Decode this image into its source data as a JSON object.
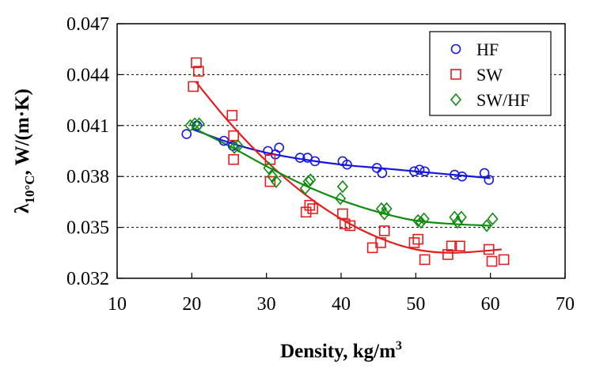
{
  "chart_data": {
    "type": "scatter",
    "xlabel": "Density, kg/m",
    "xlabel_sup": "3",
    "ylabel_main": "λ",
    "ylabel_sub": "10°C",
    "ylabel_rest": ",  W/(m·K)",
    "xlim": [
      10,
      70
    ],
    "ylim": [
      0.032,
      0.047
    ],
    "xticks": [
      "10",
      "20",
      "30",
      "40",
      "50",
      "60",
      "70"
    ],
    "yticks": [
      "0.032",
      "0.035",
      "0.038",
      "0.041",
      "0.044",
      "0.047"
    ],
    "grid": "horizontal dashed",
    "legend_position": "top-right",
    "series": [
      {
        "name": "HF",
        "marker": "circle",
        "color": "#1515e6",
        "points": [
          [
            19.3,
            0.0405
          ],
          [
            20.7,
            0.041
          ],
          [
            24.3,
            0.0401
          ],
          [
            25.5,
            0.0398
          ],
          [
            30.2,
            0.0395
          ],
          [
            31.2,
            0.0393
          ],
          [
            31.7,
            0.0397
          ],
          [
            34.5,
            0.0391
          ],
          [
            35.5,
            0.0391
          ],
          [
            36.5,
            0.0389
          ],
          [
            40.2,
            0.0389
          ],
          [
            40.8,
            0.0387
          ],
          [
            44.8,
            0.0385
          ],
          [
            45.5,
            0.0382
          ],
          [
            49.8,
            0.0383
          ],
          [
            50.5,
            0.0384
          ],
          [
            51.2,
            0.0383
          ],
          [
            55.2,
            0.0381
          ],
          [
            56.2,
            0.038
          ],
          [
            59.2,
            0.0382
          ],
          [
            59.8,
            0.0378
          ]
        ],
        "fit": [
          [
            20,
            0.0408
          ],
          [
            25,
            0.04
          ],
          [
            30,
            0.0394
          ],
          [
            35,
            0.039
          ],
          [
            40,
            0.0387
          ],
          [
            45,
            0.0385
          ],
          [
            50,
            0.0383
          ],
          [
            55,
            0.0381
          ],
          [
            60,
            0.0379
          ]
        ]
      },
      {
        "name": "SW",
        "marker": "square",
        "color": "#e41e1e",
        "points": [
          [
            20.2,
            0.0433
          ],
          [
            20.6,
            0.0447
          ],
          [
            20.9,
            0.0442
          ],
          [
            25.4,
            0.0416
          ],
          [
            25.6,
            0.0404
          ],
          [
            25.6,
            0.039
          ],
          [
            30.5,
            0.039
          ],
          [
            30.5,
            0.0377
          ],
          [
            35.3,
            0.0359
          ],
          [
            35.8,
            0.0363
          ],
          [
            36.2,
            0.0361
          ],
          [
            40.2,
            0.0358
          ],
          [
            40.5,
            0.0352
          ],
          [
            41.2,
            0.0351
          ],
          [
            44.2,
            0.0338
          ],
          [
            45.3,
            0.0341
          ],
          [
            45.8,
            0.0348
          ],
          [
            49.8,
            0.0341
          ],
          [
            50.3,
            0.0343
          ],
          [
            51.2,
            0.0331
          ],
          [
            54.3,
            0.0334
          ],
          [
            54.8,
            0.0339
          ],
          [
            55.9,
            0.0339
          ],
          [
            59.8,
            0.0337
          ],
          [
            60.2,
            0.033
          ],
          [
            61.8,
            0.0331
          ]
        ],
        "fit": [
          [
            20.5,
            0.0436
          ],
          [
            25,
            0.0412
          ],
          [
            30,
            0.0389
          ],
          [
            35,
            0.037
          ],
          [
            40,
            0.0355
          ],
          [
            45,
            0.0344
          ],
          [
            50,
            0.0337
          ],
          [
            55,
            0.0335
          ],
          [
            61.5,
            0.0337
          ]
        ]
      },
      {
        "name": "SW/HF",
        "marker": "diamond",
        "color": "#0e8c0e",
        "points": [
          [
            19.8,
            0.041
          ],
          [
            20.4,
            0.0411
          ],
          [
            21.0,
            0.0411
          ],
          [
            25.7,
            0.0397
          ],
          [
            26.2,
            0.0398
          ],
          [
            30.3,
            0.0385
          ],
          [
            30.8,
            0.038
          ],
          [
            31.3,
            0.0377
          ],
          [
            35.2,
            0.0373
          ],
          [
            35.6,
            0.0377
          ],
          [
            35.9,
            0.0378
          ],
          [
            39.9,
            0.0367
          ],
          [
            40.2,
            0.0374
          ],
          [
            45.4,
            0.0361
          ],
          [
            45.8,
            0.0358
          ],
          [
            46.1,
            0.0361
          ],
          [
            50.3,
            0.0354
          ],
          [
            50.7,
            0.0353
          ],
          [
            51.1,
            0.0355
          ],
          [
            55.2,
            0.0356
          ],
          [
            55.6,
            0.0353
          ],
          [
            56.1,
            0.0356
          ],
          [
            59.5,
            0.0351
          ],
          [
            60.3,
            0.0355
          ]
        ],
        "fit": [
          [
            20,
            0.0409
          ],
          [
            25,
            0.0398
          ],
          [
            30,
            0.0386
          ],
          [
            35,
            0.0375
          ],
          [
            40,
            0.0366
          ],
          [
            45,
            0.0359
          ],
          [
            50,
            0.0354
          ],
          [
            55,
            0.0352
          ],
          [
            60,
            0.0351
          ]
        ]
      }
    ]
  }
}
